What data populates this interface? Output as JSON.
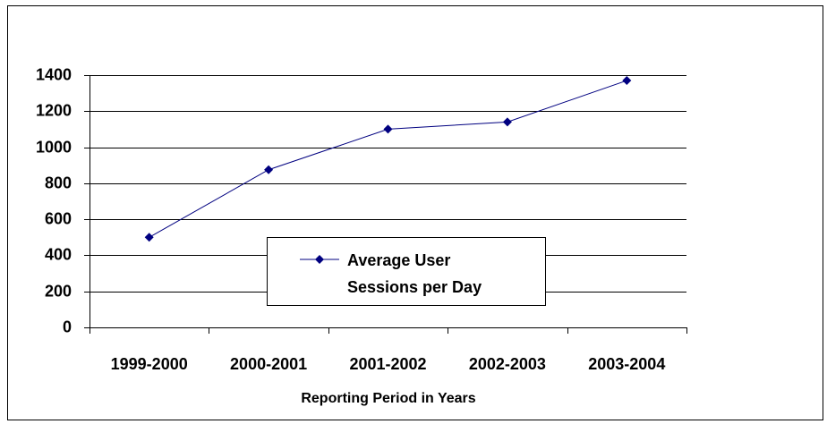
{
  "chart_data": {
    "type": "line",
    "x_label": "Reporting Period in Years",
    "categories": [
      "1999-2000",
      "2000-2001",
      "2001-2002",
      "2002-2003",
      "2003-2004"
    ],
    "series": [
      {
        "name": "Average User Sessions per Day",
        "color": "#000080",
        "values": [
          500,
          875,
          1100,
          1140,
          1370
        ]
      }
    ],
    "ylim": [
      0,
      1400
    ],
    "yticks": [
      0,
      200,
      400,
      600,
      800,
      1000,
      1200,
      1400
    ],
    "grid": true,
    "legend": "center"
  }
}
